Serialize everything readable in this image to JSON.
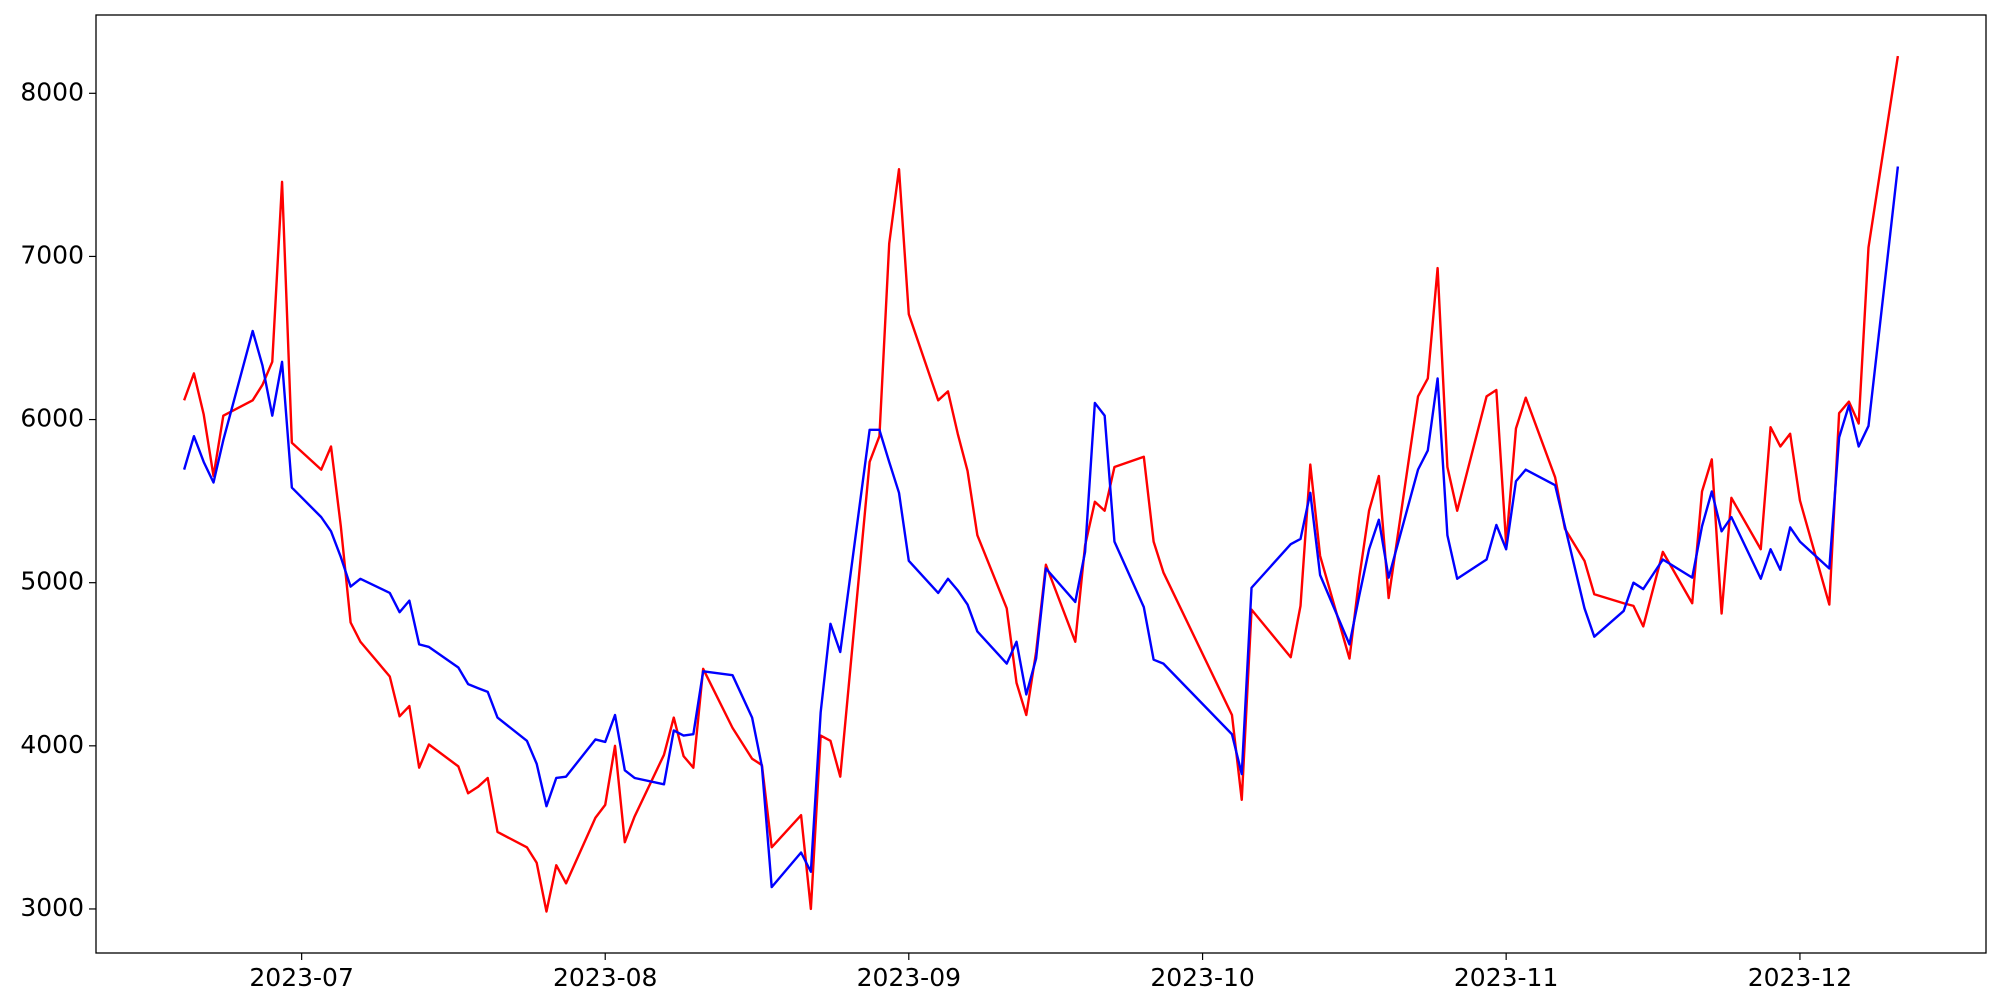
{
  "chart_data": {
    "type": "line",
    "x": [
      "2023-06-19",
      "2023-06-20",
      "2023-06-21",
      "2023-06-22",
      "2023-06-23",
      "2023-06-26",
      "2023-06-27",
      "2023-06-28",
      "2023-06-29",
      "2023-06-30",
      "2023-07-03",
      "2023-07-04",
      "2023-07-05",
      "2023-07-06",
      "2023-07-07",
      "2023-07-10",
      "2023-07-11",
      "2023-07-12",
      "2023-07-13",
      "2023-07-14",
      "2023-07-17",
      "2023-07-18",
      "2023-07-19",
      "2023-07-20",
      "2023-07-21",
      "2023-07-24",
      "2023-07-25",
      "2023-07-26",
      "2023-07-27",
      "2023-07-28",
      "2023-07-31",
      "2023-08-01",
      "2023-08-02",
      "2023-08-03",
      "2023-08-04",
      "2023-08-07",
      "2023-08-08",
      "2023-08-09",
      "2023-08-10",
      "2023-08-11",
      "2023-08-14",
      "2023-08-16",
      "2023-08-17",
      "2023-08-18",
      "2023-08-21",
      "2023-08-22",
      "2023-08-23",
      "2023-08-24",
      "2023-08-25",
      "2023-08-28",
      "2023-08-29",
      "2023-08-30",
      "2023-08-31",
      "2023-09-01",
      "2023-09-04",
      "2023-09-05",
      "2023-09-06",
      "2023-09-07",
      "2023-09-08",
      "2023-09-11",
      "2023-09-12",
      "2023-09-13",
      "2023-09-14",
      "2023-09-15",
      "2023-09-18",
      "2023-09-19",
      "2023-09-20",
      "2023-09-21",
      "2023-09-22",
      "2023-09-25",
      "2023-09-26",
      "2023-09-27",
      "2023-10-04",
      "2023-10-05",
      "2023-10-06",
      "2023-10-10",
      "2023-10-11",
      "2023-10-12",
      "2023-10-13",
      "2023-10-16",
      "2023-10-17",
      "2023-10-18",
      "2023-10-19",
      "2023-10-20",
      "2023-10-23",
      "2023-10-24",
      "2023-10-25",
      "2023-10-26",
      "2023-10-27",
      "2023-10-30",
      "2023-10-31",
      "2023-11-01",
      "2023-11-02",
      "2023-11-03",
      "2023-11-06",
      "2023-11-07",
      "2023-11-09",
      "2023-11-10",
      "2023-11-13",
      "2023-11-14",
      "2023-11-15",
      "2023-11-17",
      "2023-11-20",
      "2023-11-21",
      "2023-11-22",
      "2023-11-23",
      "2023-11-24",
      "2023-11-27",
      "2023-11-28",
      "2023-11-29",
      "2023-11-30",
      "2023-12-01",
      "2023-12-04",
      "2023-12-05",
      "2023-12-06",
      "2023-12-07",
      "2023-12-08",
      "2023-12-11"
    ],
    "series": [
      {
        "color": "#ff0000",
        "values": [
          6118,
          6283,
          6031,
          5654,
          6024,
          6118,
          6213,
          6354,
          7457,
          5858,
          5693,
          5835,
          5346,
          4756,
          4638,
          4425,
          4181,
          4244,
          3866,
          4008,
          3874,
          3709,
          3748,
          3803,
          3472,
          3378,
          3283,
          2984,
          3268,
          3157,
          3559,
          3638,
          4000,
          3409,
          3567,
          3945,
          4173,
          3937,
          3866,
          4472,
          4110,
          3921,
          3882,
          3378,
          3575,
          3000,
          4063,
          4031,
          3811,
          5740,
          5898,
          7079,
          7535,
          6646,
          6118,
          6173,
          5913,
          5685,
          5291,
          4843,
          4386,
          4189,
          4575,
          5110,
          4638,
          5228,
          5496,
          5441,
          5709,
          5772,
          5252,
          5063,
          4189,
          3669,
          4835,
          4543,
          4858,
          5724,
          5165,
          4535,
          5031,
          5441,
          5654,
          4906,
          6142,
          6252,
          6929,
          5709,
          5441,
          6142,
          6181,
          5236,
          5945,
          6134,
          5646,
          5331,
          5134,
          4929,
          4874,
          4858,
          4732,
          5189,
          4874,
          5559,
          5756,
          4811,
          5520,
          5205,
          5953,
          5835,
          5913,
          5504,
          4866,
          6039,
          6110,
          5976,
          7055,
          8228
        ]
      },
      {
        "color": "#0000ff",
        "values": [
          5693,
          5898,
          5740,
          5614,
          5874,
          6543,
          6331,
          6024,
          6354,
          5583,
          5402,
          5315,
          5157,
          4976,
          5024,
          4937,
          4819,
          4890,
          4622,
          4606,
          4480,
          4378,
          4354,
          4331,
          4173,
          4031,
          3890,
          3630,
          3803,
          3811,
          4039,
          4024,
          4189,
          3850,
          3803,
          3764,
          4094,
          4063,
          4071,
          4457,
          4433,
          4173,
          3874,
          3134,
          3346,
          3228,
          4205,
          4748,
          4575,
          5937,
          5937,
          5740,
          5551,
          5134,
          4937,
          5024,
          4953,
          4866,
          4701,
          4504,
          4638,
          4315,
          4535,
          5087,
          4882,
          5189,
          6102,
          6024,
          5252,
          4850,
          4528,
          4504,
          4071,
          3827,
          4969,
          5236,
          5268,
          5551,
          5047,
          4622,
          4921,
          5205,
          5386,
          5031,
          5693,
          5811,
          6252,
          5291,
          5024,
          5142,
          5354,
          5205,
          5622,
          5693,
          5598,
          5346,
          4843,
          4669,
          4827,
          5000,
          4961,
          5142,
          5031,
          5346,
          5559,
          5315,
          5402,
          5024,
          5205,
          5079,
          5339,
          5252,
          5087,
          5890,
          6087,
          5835,
          5961,
          7551
        ]
      }
    ],
    "xlim": [
      "2023-06-10",
      "2023-12-20"
    ],
    "xticks": [
      {
        "value": "2023-07-01",
        "label": "2023-07"
      },
      {
        "value": "2023-08-01",
        "label": "2023-08"
      },
      {
        "value": "2023-09-01",
        "label": "2023-09"
      },
      {
        "value": "2023-10-01",
        "label": "2023-10"
      },
      {
        "value": "2023-11-01",
        "label": "2023-11"
      },
      {
        "value": "2023-12-01",
        "label": "2023-12"
      }
    ],
    "ylim": [
      2730,
      8480
    ],
    "yticks": [
      3000,
      4000,
      5000,
      6000,
      7000,
      8000
    ]
  }
}
